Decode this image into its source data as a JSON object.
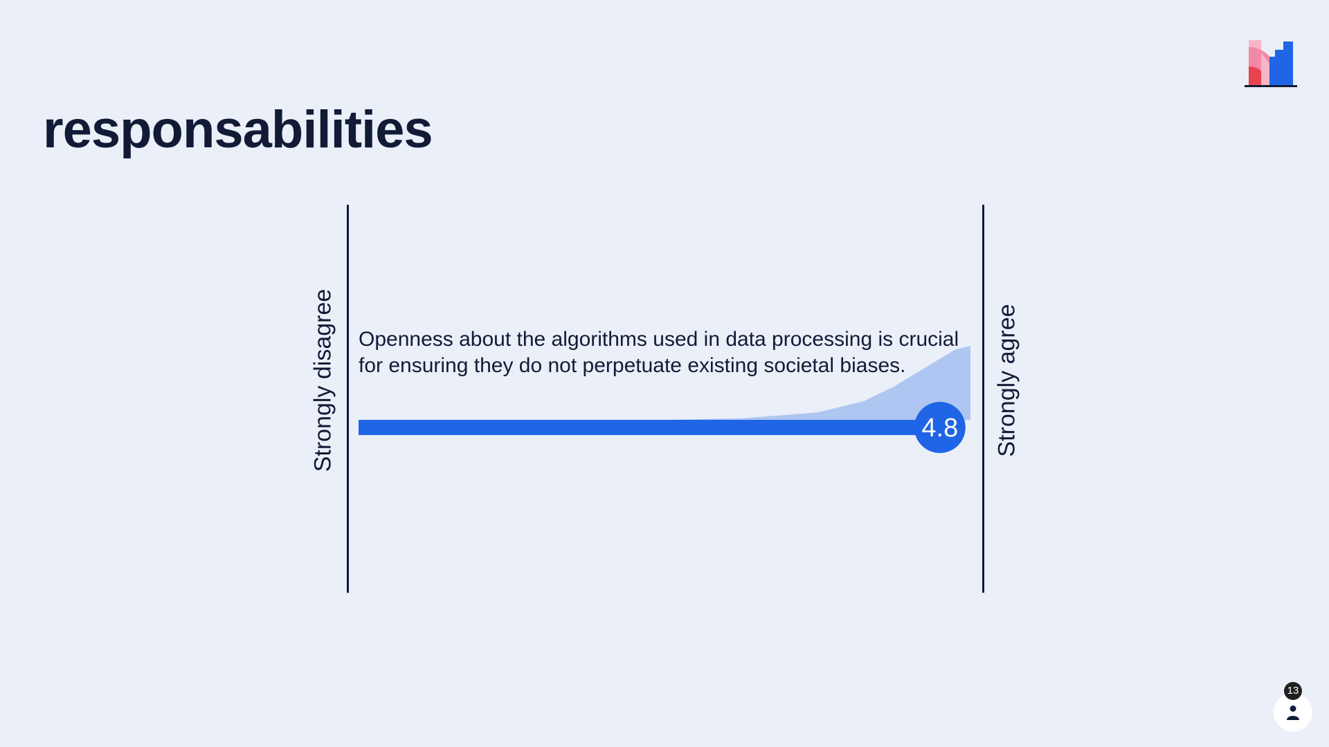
{
  "slide": {
    "title": "responsabilities"
  },
  "chart_data": {
    "type": "scale",
    "statement": "Openness about the algorithms used in data processing is crucial for ensuring they do not perpetuate existing societal biases.",
    "left_label": "Strongly disagree",
    "right_label": "Strongly agree",
    "scale_min": 1,
    "scale_max": 5,
    "average": 4.8,
    "average_label": "4.8",
    "distribution": [
      {
        "x": 1,
        "share": 0
      },
      {
        "x": 2,
        "share": 0
      },
      {
        "x": 3,
        "share": 0
      },
      {
        "x": 3.5,
        "share": 0.02
      },
      {
        "x": 4,
        "share": 0.1
      },
      {
        "x": 4.3,
        "share": 0.25
      },
      {
        "x": 4.5,
        "share": 0.45
      },
      {
        "x": 4.7,
        "share": 0.7
      },
      {
        "x": 4.9,
        "share": 0.95
      },
      {
        "x": 5,
        "share": 1
      }
    ]
  },
  "presenter": {
    "participant_count": "13",
    "icon": "person-icon"
  },
  "colors": {
    "background": "#eaeff8",
    "bar": "#1f65e6",
    "distribution": "#afc6f2",
    "text": "#111b36"
  }
}
